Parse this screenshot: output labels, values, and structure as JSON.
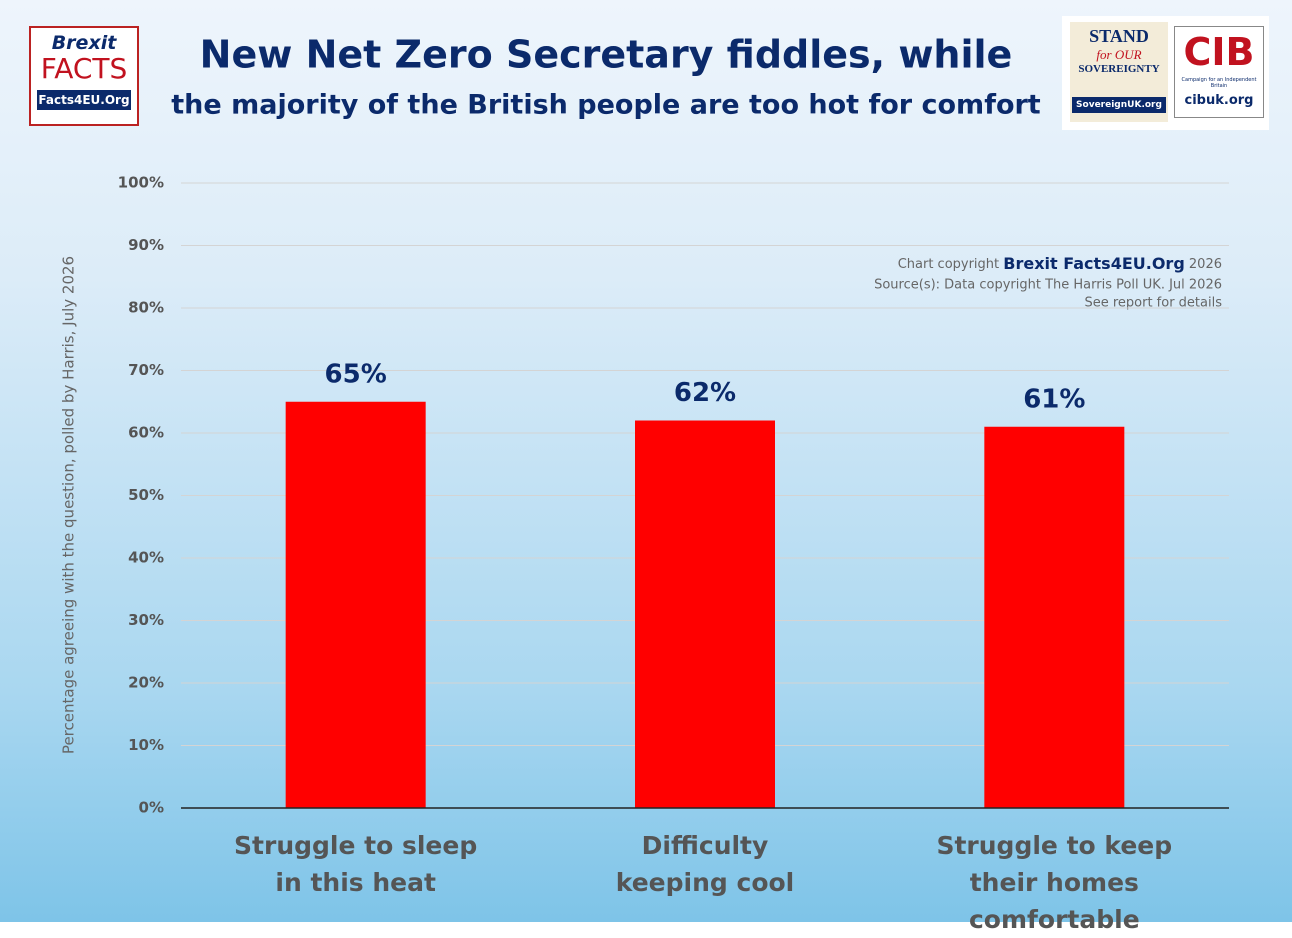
{
  "chart_data": {
    "type": "bar",
    "title": "New Net Zero Secretary fiddles, while",
    "subtitle": "the majority of the British people are too hot for comfort",
    "ylabel": "Percentage agreeing with the question, polled by Harris, July 2026",
    "categories": [
      "Struggle to sleep\nin this heat",
      "Difficulty\nkeeping cool",
      "Struggle to keep\ntheir homes comfortable"
    ],
    "values": [
      65,
      62,
      61
    ],
    "value_labels": [
      "65%",
      "62%",
      "61%"
    ],
    "color": "#ff0000",
    "ylim": [
      0,
      100
    ],
    "yticks": [
      {
        "value": 0,
        "label": "0%"
      },
      {
        "value": 10,
        "label": "10%"
      },
      {
        "value": 20,
        "label": "20%"
      },
      {
        "value": 30,
        "label": "30%"
      },
      {
        "value": 40,
        "label": "40%"
      },
      {
        "value": 50,
        "label": "50%"
      },
      {
        "value": 60,
        "label": "60%"
      },
      {
        "value": 70,
        "label": "70%"
      },
      {
        "value": 80,
        "label": "80%"
      },
      {
        "value": 90,
        "label": "90%"
      },
      {
        "value": 100,
        "label": "100%"
      }
    ],
    "grid": true,
    "annotations": {
      "copyright": [
        "Chart copyright",
        "Brexit Facts4EU.Org",
        "2026"
      ],
      "source": "Source(s): Data copyright The Harris Poll UK. Jul 2026",
      "note": "See report for details"
    }
  },
  "logos": {
    "brexit": [
      "Brexit",
      "FACTS",
      "Facts4EU.Org"
    ],
    "stand": [
      "STAND",
      "for OUR",
      "SOVEREIGNTY",
      "SovereignUK.org"
    ],
    "cib": [
      "CIB",
      "Campaign for an Independent Britain",
      "cibuk.org"
    ]
  }
}
